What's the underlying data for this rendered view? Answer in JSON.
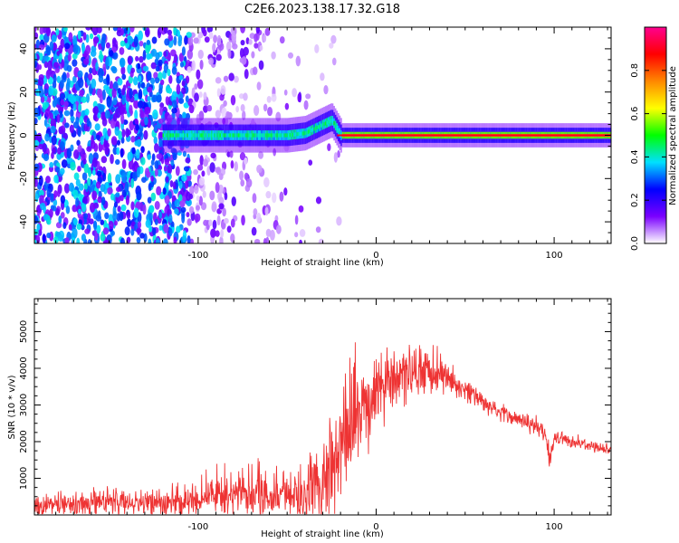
{
  "title": "C2E6.2023.138.17.32.G18",
  "chart_data": [
    {
      "type": "heatmap",
      "title": "C2E6.2023.138.17.32.G18",
      "xlabel": "Height of straight line (km)",
      "ylabel": "Frequency (Hz)",
      "xlim": [
        -192,
        132
      ],
      "ylim": [
        -50,
        50
      ],
      "x_ticks": [
        -100,
        0,
        100
      ],
      "x_tick_labels": [
        "-100",
        "0",
        "100"
      ],
      "y_ticks": [
        -40,
        -20,
        0,
        20,
        40
      ],
      "y_tick_labels": [
        "-40",
        "-20",
        "0",
        "20",
        "40"
      ],
      "signal_track": {
        "x": [
          -110,
          -100,
          -90,
          -80,
          -70,
          -60,
          -50,
          -40,
          -35,
          -30,
          -25,
          -20,
          0,
          20,
          40,
          60,
          80,
          100,
          132
        ],
        "frequency": [
          0,
          0,
          0,
          0,
          0,
          0,
          0,
          1,
          3,
          5,
          7,
          0,
          0,
          0,
          0,
          0,
          0,
          0,
          0
        ]
      },
      "colorbar": {
        "label": "Normalized spectral amplitude",
        "range": [
          0.0,
          1.0
        ],
        "ticks": [
          0.0,
          0.2,
          0.4,
          0.6,
          0.8
        ],
        "tick_labels": [
          "0.0",
          "0.2",
          "0.4",
          "0.6",
          "0.8"
        ],
        "colormap": [
          "#ffffff",
          "#7a00ff",
          "#0000ff",
          "#00e0ff",
          "#00ff00",
          "#ffff00",
          "#ff8800",
          "#ff0000",
          "#ff0090"
        ]
      },
      "grid": false
    },
    {
      "type": "line",
      "xlabel": "Height of straight line (km)",
      "ylabel": "SNR (10 * v/v)",
      "xlim": [
        -192,
        132
      ],
      "ylim": [
        0,
        5900
      ],
      "x_ticks": [
        -100,
        0,
        100
      ],
      "x_tick_labels": [
        "-100",
        "0",
        "100"
      ],
      "y_ticks": [
        1000,
        2000,
        3000,
        4000,
        5000
      ],
      "y_tick_labels": [
        "1000",
        "2000",
        "3000",
        "4000",
        "5000"
      ],
      "color": "#ee3333",
      "envelope": {
        "x": [
          -192,
          -170,
          -150,
          -130,
          -110,
          -90,
          -70,
          -50,
          -40,
          -30,
          -25,
          -20,
          -15,
          -10,
          -5,
          0,
          5,
          10,
          20,
          30,
          40,
          50,
          60,
          70,
          80,
          90,
          95,
          98,
          100,
          110,
          120,
          132
        ],
        "mean": [
          250,
          300,
          350,
          300,
          350,
          500,
          550,
          500,
          650,
          900,
          1000,
          1800,
          2300,
          2800,
          3100,
          3500,
          3700,
          3700,
          3900,
          3900,
          3700,
          3400,
          3100,
          2800,
          2600,
          2400,
          2200,
          1500,
          2100,
          2000,
          1900,
          1800
        ],
        "spread": [
          300,
          400,
          400,
          400,
          500,
          650,
          700,
          700,
          900,
          1300,
          1500,
          1800,
          2000,
          1800,
          1500,
          1300,
          1100,
          1000,
          800,
          700,
          500,
          400,
          300,
          250,
          220,
          220,
          250,
          500,
          220,
          180,
          160,
          150
        ]
      },
      "grid": false
    }
  ]
}
